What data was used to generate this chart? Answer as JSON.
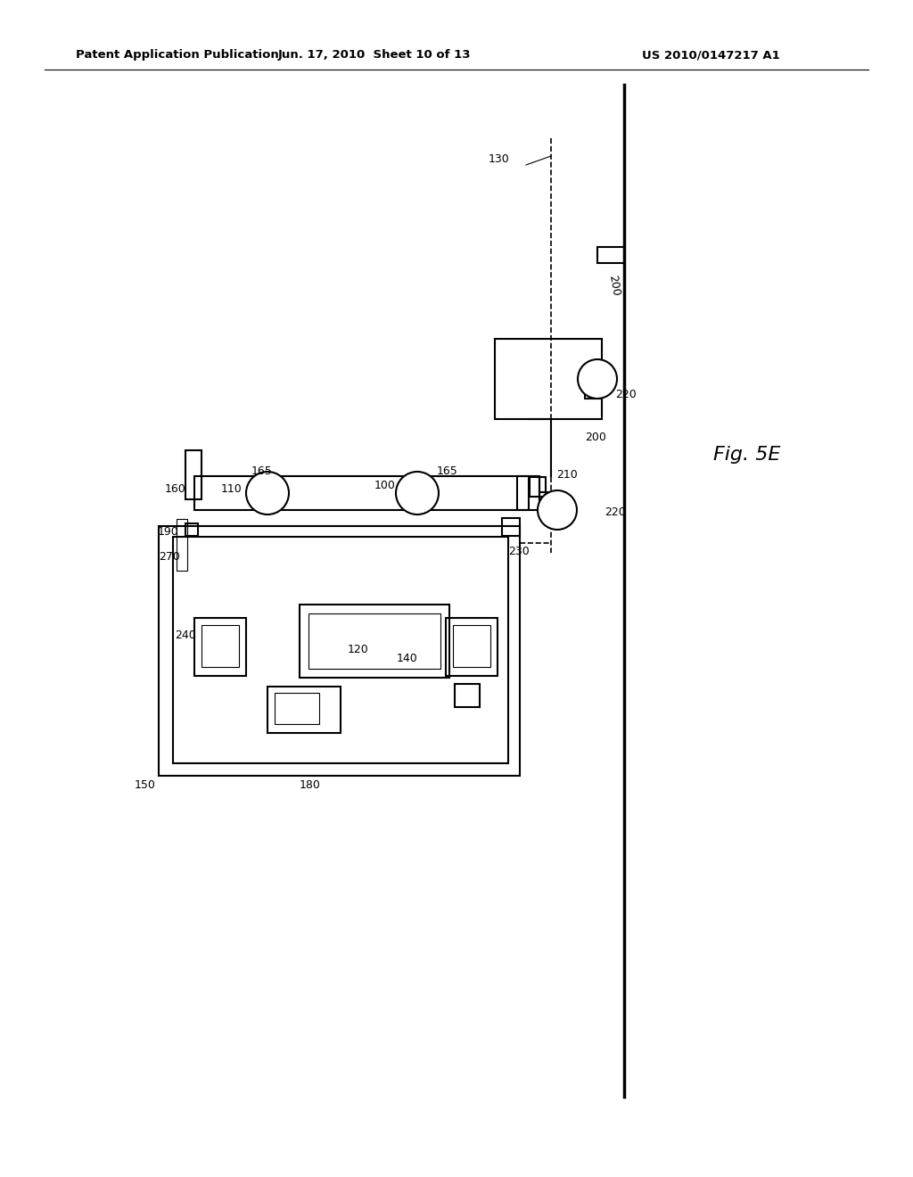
{
  "title_left": "Patent Application Publication",
  "title_mid": "Jun. 17, 2010  Sheet 10 of 13",
  "title_right": "US 2010/0147217 A1",
  "fig_label": "Fig. 5E",
  "bg_color": "#ffffff",
  "line_color": "#000000",
  "line_width": 1.5
}
